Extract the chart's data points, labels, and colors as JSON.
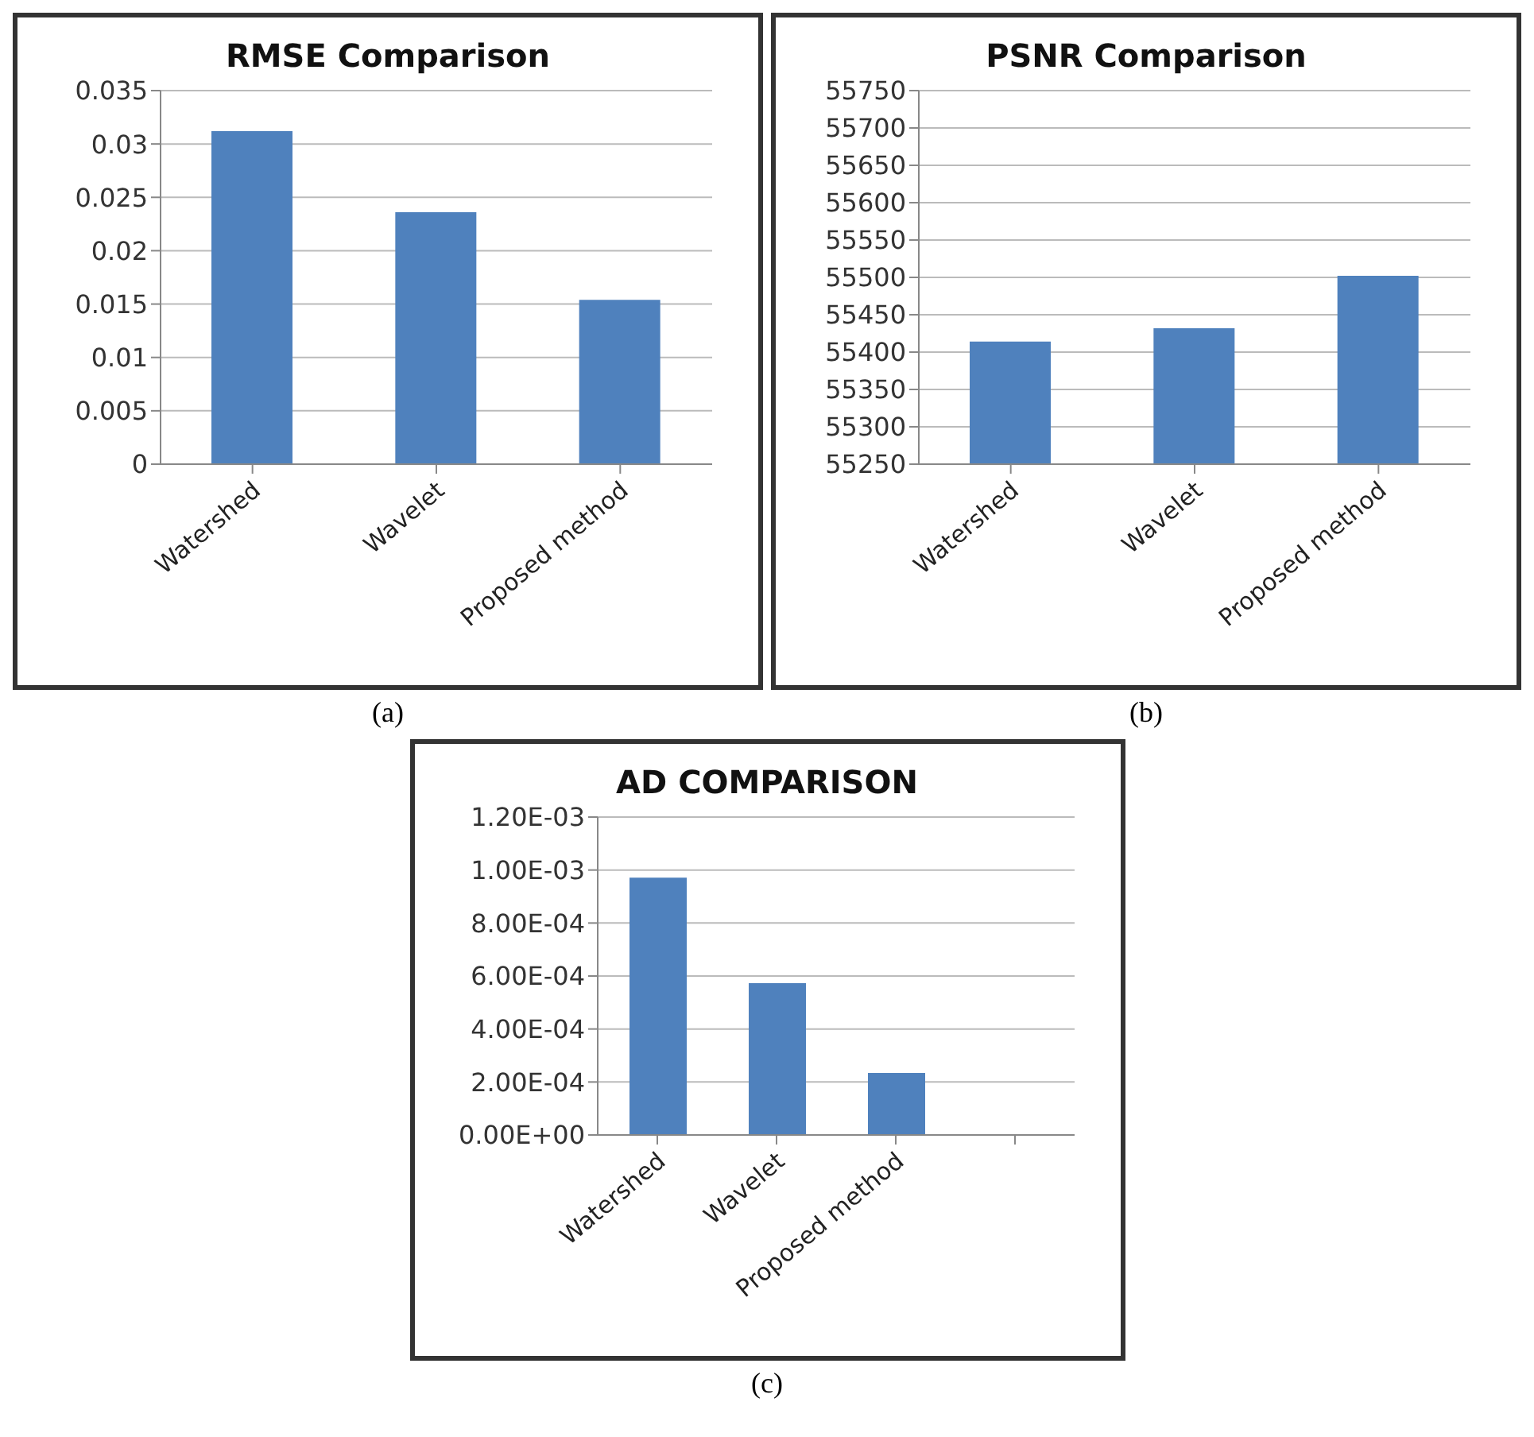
{
  "chart_data": [
    {
      "type": "bar",
      "title": "RMSE Comparison",
      "categories": [
        "Watershed",
        "Wavelet",
        "Proposed method"
      ],
      "values": [
        0.0312,
        0.0236,
        0.0154
      ],
      "color": "#4f81bd",
      "ylim": [
        0,
        0.035
      ],
      "yticks": [
        0,
        0.005,
        0.01,
        0.015,
        0.02,
        0.025,
        0.03,
        0.035
      ],
      "grid": "y",
      "annotations": [
        "(a)"
      ]
    },
    {
      "type": "bar",
      "title": "PSNR Comparison",
      "categories": [
        "Watershed",
        "Wavelet",
        "Proposed method"
      ],
      "values": [
        55414,
        55432,
        55502
      ],
      "color": "#4f81bd",
      "ylim": [
        55250,
        55750
      ],
      "yticks": [
        55250,
        55300,
        55350,
        55400,
        55450,
        55500,
        55550,
        55600,
        55650,
        55700,
        55750
      ],
      "grid": "y",
      "annotations": [
        "(b)"
      ]
    },
    {
      "type": "bar",
      "title": "AD COMPARISON",
      "categories": [
        "Watershed",
        "Wavelet",
        "Proposed method",
        null
      ],
      "values": [
        0.000971,
        0.000573,
        0.000234,
        null
      ],
      "color": "#4f81bd",
      "ylim": [
        0,
        0.0012
      ],
      "yticks": [
        {
          "value": 0,
          "label": "0.00E+00"
        },
        {
          "value": 0.0002,
          "label": "2.00E-04"
        },
        {
          "value": 0.0004,
          "label": "4.00E-04"
        },
        {
          "value": 0.0006,
          "label": "6.00E-04"
        },
        {
          "value": 0.0008,
          "label": "8.00E-04"
        },
        {
          "value": 0.001,
          "label": "1.00E-03"
        },
        {
          "value": 0.0012,
          "label": "1.20E-03"
        }
      ],
      "grid": "y",
      "annotations": [
        "(c)"
      ]
    }
  ]
}
